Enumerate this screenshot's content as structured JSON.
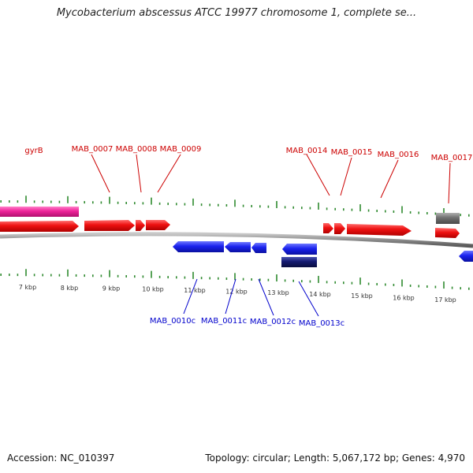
{
  "title": "Mycobacterium abscessus ATCC 19977 chromosome 1, complete se...",
  "footer": {
    "accession": "Accession: NC_010397",
    "summary": "Topology: circular; Length: 5,067,172 bp; Genes: 4,970"
  },
  "colors": {
    "forward_gene": "#ee1111",
    "reverse_gene": "#1a22ee",
    "highlight_gene": "#ee2299",
    "dark_gene": "#141a70",
    "grey_feature": "#707070",
    "backbone": "#8a8a8a",
    "tick": "#2f8a2f",
    "forward_label": "#cc0000",
    "reverse_label": "#0000cc"
  },
  "axis": {
    "ticks": [
      {
        "label": "7 kbp"
      },
      {
        "label": "8 kbp"
      },
      {
        "label": "9 kbp"
      },
      {
        "label": "10 kbp"
      },
      {
        "label": "11 kbp"
      },
      {
        "label": "12 kbp"
      },
      {
        "label": "13 kbp"
      },
      {
        "label": "14 kbp"
      },
      {
        "label": "15 kbp"
      },
      {
        "label": "16 kbp"
      },
      {
        "label": "17 kbp"
      }
    ]
  },
  "forward_labels": [
    "gyrB",
    "MAB_0007",
    "MAB_0008",
    "MAB_0009",
    "MAB_0014",
    "MAB_0015",
    "MAB_0016",
    "MAB_0017"
  ],
  "reverse_labels": [
    "MAB_0010c",
    "MAB_0011c",
    "MAB_0012c",
    "MAB_0013c"
  ]
}
